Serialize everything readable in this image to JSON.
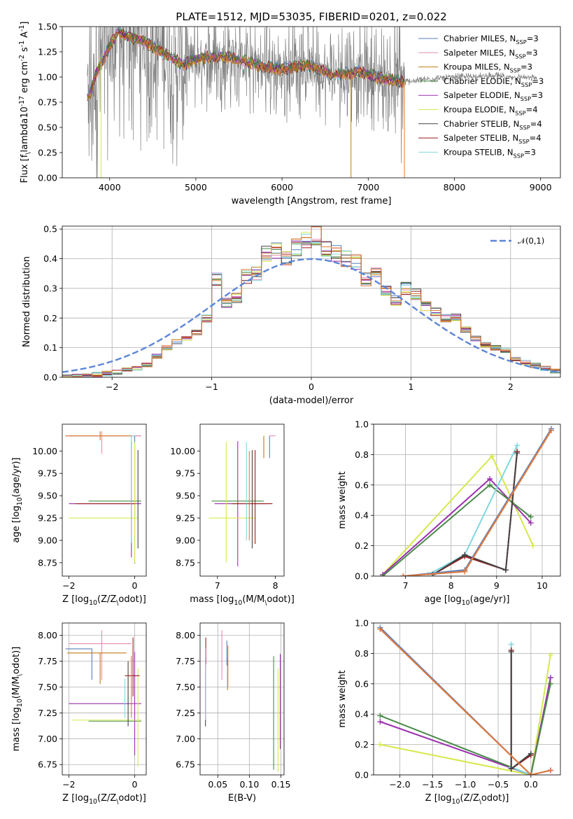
{
  "colors": {
    "spectrum": "#808080",
    "normal_curve": "#5b86d6",
    "chabrier_miles": "#5a7fbf",
    "salpeter_miles": "#e98bb2",
    "kroupa_miles": "#c07a1a",
    "chabrier_elodie": "#4a8a4a",
    "salpeter_elodie": "#9b2fae",
    "kroupa_elodie": "#d6e84a",
    "chabrier_stelib": "#444444",
    "salpeter_stelib": "#9b1b1b",
    "kroupa_stelib": "#7fd8e0",
    "orange_model": "#dd7a3a"
  },
  "legend_entries": [
    "Chabrier MILES, N$_{SSP}$=3",
    "Salpeter MILES, N$_{SSP}$=3",
    "Kroupa MILES, N$_{SSP}$=3",
    "Chabrier ELODIE, N$_{SSP}$=3",
    "Salpeter ELODIE, N$_{SSP}$=3",
    "Kroupa ELODIE, N$_{SSP}$=4",
    "Chabrier STELIB, N$_{SSP}$=4",
    "Salpeter STELIB, N$_{SSP}$=4",
    "Kroupa STELIB, N$_{SSP}$=3"
  ],
  "chart_data": [
    {
      "id": "spectrum",
      "type": "line",
      "title": "PLATE=1512, MJD=53035, FIBERID=0201, z=0.022",
      "xlabel": "wavelength [Angstrom, rest frame]",
      "ylabel": "Flux [f$_\\lambda$10$^{-17}$ erg cm$^{-2}$ s$^{-1}$ A$^{-1}$]",
      "xlim": [
        3450,
        9230
      ],
      "ylim": [
        0,
        1.5
      ],
      "xticks": [
        4000,
        5000,
        6000,
        7000,
        8000,
        9000
      ],
      "yticks": [
        0.0,
        0.25,
        0.5,
        0.75,
        1.0,
        1.25,
        1.5
      ],
      "data_range": [
        3740,
        8960
      ],
      "model_range": [
        3740,
        7420
      ],
      "model_profile": {
        "x": [
          3760,
          3850,
          4000,
          4100,
          4200,
          4400,
          4600,
          4860,
          5000,
          5200,
          5400,
          5800,
          6000,
          6300,
          6600,
          6900,
          7100,
          7420
        ],
        "y": [
          0.8,
          1.05,
          1.3,
          1.45,
          1.4,
          1.35,
          1.25,
          1.12,
          1.18,
          1.2,
          1.2,
          1.1,
          1.08,
          1.12,
          1.02,
          1.05,
          1.0,
          0.95
        ]
      },
      "tail_profile": {
        "x": [
          7420,
          7600,
          8000,
          8400,
          8700,
          8960
        ],
        "y": [
          0.95,
          0.97,
          1.0,
          1.01,
          1.0,
          0.99
        ]
      },
      "grid": false,
      "legend_position": "upper right"
    },
    {
      "id": "residuals",
      "type": "step",
      "xlabel": "(data-model)/error",
      "ylabel": "Normed distribution",
      "xlim": [
        -2.5,
        2.5
      ],
      "ylim": [
        0,
        0.51
      ],
      "xticks": [
        -2,
        -1,
        0,
        1,
        2
      ],
      "yticks": [
        0.0,
        0.1,
        0.2,
        0.3,
        0.4,
        0.5
      ],
      "bin_edges_start": -2.5,
      "bin_width": 0.1,
      "histogram_reference": [
        0.0,
        0.003,
        0.006,
        0.009,
        0.013,
        0.018,
        0.025,
        0.03,
        0.04,
        0.07,
        0.1,
        0.12,
        0.13,
        0.15,
        0.2,
        0.33,
        0.25,
        0.27,
        0.34,
        0.35,
        0.42,
        0.43,
        0.4,
        0.44,
        0.46,
        0.48,
        0.43,
        0.42,
        0.4,
        0.39,
        0.33,
        0.35,
        0.29,
        0.26,
        0.3,
        0.28,
        0.24,
        0.22,
        0.2,
        0.2,
        0.16,
        0.13,
        0.11,
        0.1,
        0.09,
        0.06,
        0.05,
        0.04,
        0.03,
        0.02
      ],
      "curve_legend": "$\\mathcal{N}(0,1)$",
      "curve": "normal pdf, mean 0, sigma 1",
      "grid": true,
      "legend_position": "upper right"
    },
    {
      "id": "age_vs_Z",
      "type": "errorbar",
      "xlabel": "Z [log$_{10}$($Z/Z_\\odot$)]",
      "ylabel": "age  [log$_{10}$($age/yr$)]",
      "xlim": [
        -2.2,
        0.35
      ],
      "ylim": [
        8.6,
        10.3
      ],
      "xticks": [
        -2,
        0
      ],
      "yticks": [
        8.75,
        9.0,
        9.25,
        9.5,
        9.75,
        10.0
      ],
      "points": [
        {
          "model": "chabrier_miles",
          "x": 0.0,
          "xerr": [
            2.0,
            0.2
          ],
          "y": 10.17,
          "yerr": [
            0.9,
            0.0
          ]
        },
        {
          "model": "salpeter_miles",
          "x": -1.0,
          "xerr": [
            1.1,
            1.2
          ],
          "y": 10.17,
          "yerr": [
            0.2,
            0.05
          ]
        },
        {
          "model": "kroupa_miles",
          "x": -1.05,
          "xerr": [
            1.05,
            0.7
          ],
          "y": 10.17,
          "yerr": [
            0.05,
            0.05
          ]
        },
        {
          "model": "chabrier_elodie",
          "x": 0.0,
          "xerr": [
            1.4,
            0.2
          ],
          "y": 9.44,
          "yerr": [
            0.7,
            0.6
          ]
        },
        {
          "model": "salpeter_elodie",
          "x": -0.1,
          "xerr": [
            1.9,
            0.3
          ],
          "y": 9.41,
          "yerr": [
            0.6,
            0.7
          ]
        },
        {
          "model": "kroupa_elodie",
          "x": 0.0,
          "xerr": [
            2.0,
            0.1
          ],
          "y": 9.25,
          "yerr": [
            0.5,
            0.85
          ]
        },
        {
          "model": "chabrier_stelib",
          "x": 0.1,
          "xerr": [
            0.0,
            0.0
          ],
          "y": 9.41,
          "yerr": [
            0.5,
            0.6
          ]
        },
        {
          "model": "salpeter_stelib",
          "x": -0.1,
          "xerr": [
            1.7,
            0.1
          ],
          "y": 9.41,
          "yerr": [
            0.0,
            0.0
          ]
        },
        {
          "model": "kroupa_stelib",
          "x": -0.1,
          "xerr": [
            0.0,
            0.1
          ],
          "y": 10.17,
          "yerr": [
            1.2,
            0.0
          ]
        },
        {
          "model": "orange_model",
          "x": -0.2,
          "xerr": [
            1.9,
            0.1
          ],
          "y": 10.17,
          "yerr": [
            0.0,
            0.0
          ]
        }
      ],
      "grid": false
    },
    {
      "id": "age_vs_mass",
      "type": "errorbar",
      "xlabel": "mass [log$_{10}$($M/M_\\odot$)]",
      "ylabel": "",
      "xlim": [
        6.7,
        8.15
      ],
      "ylim": [
        8.6,
        10.3
      ],
      "xticks": [
        7,
        8
      ],
      "yticks": [
        8.75,
        9.0,
        9.25,
        9.5,
        9.75,
        10.0
      ],
      "points": [
        {
          "model": "chabrier_miles",
          "x": 7.9,
          "xerr": [
            0.0,
            0.0
          ],
          "y": 10.17,
          "yerr": [
            0.25,
            0.0
          ]
        },
        {
          "model": "salpeter_miles",
          "x": 7.95,
          "xerr": [
            0.05,
            0.05
          ],
          "y": 10.17,
          "yerr": [
            0.0,
            0.0
          ]
        },
        {
          "model": "kroupa_miles",
          "x": 7.8,
          "xerr": [
            0.0,
            0.0
          ],
          "y": 10.17,
          "yerr": [
            0.25,
            0.0
          ]
        },
        {
          "model": "chabrier_elodie",
          "x": 7.4,
          "xerr": [
            0.5,
            0.4
          ],
          "y": 9.44,
          "yerr": [
            0.0,
            0.0
          ]
        },
        {
          "model": "salpeter_elodie",
          "x": 7.35,
          "xerr": [
            0.4,
            0.5
          ],
          "y": 9.41,
          "yerr": [
            0.7,
            0.7
          ]
        },
        {
          "model": "kroupa_elodie",
          "x": 7.15,
          "xerr": [
            0.3,
            0.5
          ],
          "y": 9.25,
          "yerr": [
            0.5,
            0.85
          ]
        },
        {
          "model": "chabrier_stelib",
          "x": 7.6,
          "xerr": [
            0.0,
            0.0
          ],
          "y": 9.41,
          "yerr": [
            0.5,
            0.6
          ]
        },
        {
          "model": "salpeter_stelib",
          "x": 7.65,
          "xerr": [
            0.4,
            0.3
          ],
          "y": 9.41,
          "yerr": [
            0.45,
            0.6
          ]
        },
        {
          "model": "kroupa_stelib",
          "x": 7.5,
          "xerr": [
            0.0,
            0.0
          ],
          "y": 10.0,
          "yerr": [
            1.0,
            0.1
          ]
        },
        {
          "model": "orange_model",
          "x": 7.55,
          "xerr": [
            0.0,
            0.0
          ],
          "y": 9.5,
          "yerr": [
            0.5,
            0.5
          ]
        }
      ],
      "grid": false
    },
    {
      "id": "weight_vs_age",
      "type": "line",
      "xlabel": "age  [log$_{10}$($age/yr$)]",
      "ylabel": "mass weight",
      "xlim": [
        6.3,
        10.4
      ],
      "ylim": [
        0,
        1.0
      ],
      "xticks": [
        7,
        8,
        9,
        10
      ],
      "yticks": [
        0.0,
        0.2,
        0.4,
        0.6,
        0.8,
        1.0
      ],
      "series": [
        {
          "model": "kroupa_elodie",
          "x": [
            6.5,
            8.9,
            9.8
          ],
          "y": [
            0.01,
            0.79,
            0.2
          ]
        },
        {
          "model": "salpeter_elodie",
          "x": [
            6.5,
            8.85,
            9.75
          ],
          "y": [
            0.01,
            0.64,
            0.35
          ]
        },
        {
          "model": "chabrier_elodie",
          "x": [
            6.5,
            8.85,
            9.75
          ],
          "y": [
            0.0,
            0.6,
            0.39
          ]
        },
        {
          "model": "kroupa_stelib",
          "x": [
            7.5,
            8.3,
            9.45
          ],
          "y": [
            0.01,
            0.14,
            0.86
          ]
        },
        {
          "model": "salpeter_stelib",
          "x": [
            7.6,
            8.3,
            9.2,
            9.45
          ],
          "y": [
            0.01,
            0.13,
            0.04,
            0.82
          ]
        },
        {
          "model": "chabrier_stelib",
          "x": [
            7.6,
            8.3,
            9.2,
            9.45
          ],
          "y": [
            0.01,
            0.14,
            0.04,
            0.81
          ]
        },
        {
          "model": "chabrier_miles",
          "x": [
            6.95,
            8.3,
            10.2
          ],
          "y": [
            0.0,
            0.04,
            0.97
          ]
        },
        {
          "model": "salpeter_miles",
          "x": [
            6.95,
            8.3,
            10.2
          ],
          "y": [
            0.0,
            0.03,
            0.96
          ]
        },
        {
          "model": "orange_model",
          "x": [
            6.95,
            8.3,
            10.2
          ],
          "y": [
            0.0,
            0.03,
            0.96
          ]
        }
      ],
      "grid": true
    },
    {
      "id": "mass_vs_Z",
      "type": "errorbar",
      "xlabel": "Z [log$_{10}$($Z/Z_\\odot$)]",
      "ylabel": "mass [log$_{10}$($M/M_\\odot$)]",
      "xlim": [
        -2.2,
        0.35
      ],
      "ylim": [
        6.65,
        8.12
      ],
      "xticks": [
        -2,
        0
      ],
      "yticks": [
        6.75,
        7.0,
        7.25,
        7.5,
        7.75,
        8.0
      ],
      "points": [
        {
          "model": "chabrier_miles",
          "x": -1.3,
          "xerr": [
            0.8,
            0.0
          ],
          "y": 7.87,
          "yerr": [
            0.3,
            0.0
          ]
        },
        {
          "model": "salpeter_miles",
          "x": -1.0,
          "xerr": [
            1.0,
            0.9
          ],
          "y": 7.92,
          "yerr": [
            0.35,
            0.13
          ]
        },
        {
          "model": "kroupa_miles",
          "x": -1.05,
          "xerr": [
            1.0,
            0.8
          ],
          "y": 7.83,
          "yerr": [
            0.3,
            0.0
          ]
        },
        {
          "model": "chabrier_elodie",
          "x": -0.3,
          "xerr": [
            1.1,
            0.5
          ],
          "y": 7.17,
          "yerr": [
            0.0,
            0.0
          ]
        },
        {
          "model": "salpeter_elodie",
          "x": 0.0,
          "xerr": [
            2.0,
            0.2
          ],
          "y": 7.34,
          "yerr": [
            0.5,
            0.5
          ]
        },
        {
          "model": "kroupa_elodie",
          "x": 0.1,
          "xerr": [
            2.0,
            0.1
          ],
          "y": 7.18,
          "yerr": [
            0.45,
            0.5
          ]
        },
        {
          "model": "chabrier_stelib",
          "x": -0.2,
          "xerr": [
            0.0,
            0.0
          ],
          "y": 7.45,
          "yerr": [
            0.33,
            0.3
          ]
        },
        {
          "model": "salpeter_stelib",
          "x": -0.05,
          "xerr": [
            0.25,
            0.2
          ],
          "y": 7.61,
          "yerr": [
            0.2,
            0.37
          ]
        },
        {
          "model": "kroupa_stelib",
          "x": -0.3,
          "xerr": [
            0.0,
            0.0
          ],
          "y": 7.48,
          "yerr": [
            0.28,
            0.1
          ]
        },
        {
          "model": "orange_model",
          "x": -0.1,
          "xerr": [
            0.0,
            0.0
          ],
          "y": 7.5,
          "yerr": [
            0.3,
            0.3
          ]
        }
      ],
      "grid": true
    },
    {
      "id": "mass_vs_ebv",
      "type": "errorbar",
      "xlabel": "E(B-V)",
      "ylabel": "",
      "xlim": [
        0.022,
        0.155
      ],
      "ylim": [
        6.65,
        8.12
      ],
      "xticks": [
        0.05,
        0.1,
        0.15
      ],
      "yticks": [
        6.75,
        7.0,
        7.25,
        7.5,
        7.75,
        8.0
      ],
      "points": [
        {
          "model": "chabrier_miles",
          "x": 0.0645,
          "xerr": [
            0.0,
            0.0
          ],
          "y": 7.83,
          "yerr": [
            0.12,
            0.12
          ]
        },
        {
          "model": "salpeter_miles",
          "x": 0.0565,
          "xerr": [
            0.0,
            0.0
          ],
          "y": 7.92,
          "yerr": [
            0.35,
            0.13
          ]
        },
        {
          "model": "kroupa_miles",
          "x": 0.0655,
          "xerr": [
            0.0,
            0.0
          ],
          "y": 7.62,
          "yerr": [
            0.15,
            0.15
          ]
        },
        {
          "model": "chabrier_elodie",
          "x": 0.1385,
          "xerr": [
            0.0,
            0.0
          ],
          "y": 7.3,
          "yerr": [
            0.6,
            0.5
          ]
        },
        {
          "model": "salpeter_elodie",
          "x": 0.149,
          "xerr": [
            0.0,
            0.0
          ],
          "y": 7.4,
          "yerr": [
            0.5,
            0.42
          ]
        },
        {
          "model": "kroupa_elodie",
          "x": 0.1455,
          "xerr": [
            0.0,
            0.0
          ],
          "y": 7.18,
          "yerr": [
            0.5,
            0.5
          ]
        },
        {
          "model": "chabrier_stelib",
          "x": 0.0305,
          "xerr": [
            0.0,
            0.0
          ],
          "y": 7.5,
          "yerr": [
            0.38,
            0.28
          ]
        },
        {
          "model": "salpeter_stelib",
          "x": 0.031,
          "xerr": [
            0.0,
            0.0
          ],
          "y": 7.72,
          "yerr": [
            0.0,
            0.26
          ]
        },
        {
          "model": "kroupa_stelib",
          "x": 0.0305,
          "xerr": [
            0.0,
            0.0
          ],
          "y": 7.55,
          "yerr": [
            0.37,
            0.33
          ]
        },
        {
          "model": "orange_model",
          "x": 0.066,
          "xerr": [
            0.0,
            0.0
          ],
          "y": 7.7,
          "yerr": [
            0.2,
            0.2
          ]
        }
      ],
      "grid": true
    },
    {
      "id": "weight_vs_Z",
      "type": "line",
      "xlabel": "Z [log$_{10}$($Z/Z_\\odot$)]",
      "ylabel": "mass weight",
      "xlim": [
        -2.4,
        0.45
      ],
      "ylim": [
        0,
        1.0
      ],
      "xticks": [
        -2.0,
        -1.5,
        -1.0,
        -0.5,
        0.0
      ],
      "yticks": [
        0.0,
        0.2,
        0.4,
        0.6,
        0.8,
        1.0
      ],
      "series": [
        {
          "model": "kroupa_elodie",
          "x": [
            -2.3,
            0.0,
            0.3
          ],
          "y": [
            0.2,
            0.0,
            0.79
          ]
        },
        {
          "model": "salpeter_elodie",
          "x": [
            -2.3,
            0.0,
            0.3
          ],
          "y": [
            0.35,
            0.0,
            0.64
          ]
        },
        {
          "model": "chabrier_elodie",
          "x": [
            -2.3,
            0.0,
            0.3
          ],
          "y": [
            0.39,
            0.0,
            0.6
          ]
        },
        {
          "model": "kroupa_stelib",
          "x": [
            0.0,
            -0.3,
            -0.3
          ],
          "y": [
            0.0,
            0.05,
            0.86
          ]
        },
        {
          "model": "salpeter_stelib",
          "x": [
            0.0,
            -0.3,
            -0.3
          ],
          "y": [
            0.13,
            0.04,
            0.82
          ]
        },
        {
          "model": "chabrier_stelib",
          "x": [
            0.0,
            -0.3,
            -0.3
          ],
          "y": [
            0.14,
            0.04,
            0.81
          ]
        },
        {
          "model": "chabrier_miles",
          "x": [
            -2.3,
            0.0,
            0.3
          ],
          "y": [
            0.97,
            0.0,
            0.03
          ]
        },
        {
          "model": "salpeter_miles",
          "x": [
            -2.3,
            0.0,
            0.3
          ],
          "y": [
            0.96,
            0.0,
            0.03
          ]
        },
        {
          "model": "orange_model",
          "x": [
            -2.3,
            0.0,
            0.3
          ],
          "y": [
            0.96,
            0.0,
            0.03
          ]
        }
      ],
      "grid": true
    }
  ]
}
